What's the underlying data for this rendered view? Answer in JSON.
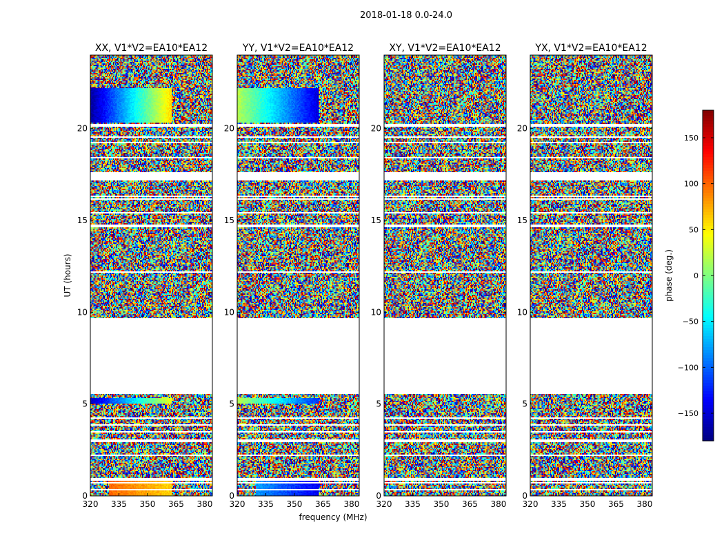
{
  "chart_data": {
    "type": "heatmap",
    "suptitle": "2018-01-18 0.0-24.0",
    "xlabel": "frequency (MHz)",
    "ylabel": "UT (hours)",
    "xlim": [
      320,
      384
    ],
    "ylim": [
      0,
      24
    ],
    "xticks": [
      320,
      335,
      350,
      365,
      380
    ],
    "yticks": [
      0,
      5,
      10,
      15,
      20
    ],
    "panels": [
      {
        "title": "XX, V1*V2=EA10*EA12",
        "pol": "XX"
      },
      {
        "title": "YY, V1*V2=EA10*EA12",
        "pol": "YY"
      },
      {
        "title": "XY, V1*V2=EA10*EA12",
        "pol": "XY"
      },
      {
        "title": "YX, V1*V2=EA10*EA12",
        "pol": "YX"
      }
    ],
    "flagged_ut_hours": [
      [
        5.55,
        9.7
      ],
      [
        17.2,
        17.6
      ],
      [
        0.8,
        0.95
      ],
      [
        2.9,
        3.05
      ],
      [
        14.6,
        14.75
      ],
      [
        20.1,
        20.25
      ]
    ],
    "coherent_segments": [
      {
        "pol": "XX",
        "ut": [
          20.3,
          22.2
        ],
        "freq": [
          320,
          363
        ],
        "phase_start": -170,
        "phase_end": 60
      },
      {
        "pol": "XX",
        "ut": [
          5.0,
          5.3
        ],
        "freq": [
          320,
          363
        ],
        "phase_start": -160,
        "phase_end": 40
      },
      {
        "pol": "XX",
        "ut": [
          0.0,
          0.8
        ],
        "freq": [
          330,
          363
        ],
        "phase_start": 100,
        "phase_end": 60
      },
      {
        "pol": "YY",
        "ut": [
          20.3,
          22.2
        ],
        "freq": [
          320,
          363
        ],
        "phase_start": 20,
        "phase_end": -150
      },
      {
        "pol": "YY",
        "ut": [
          5.0,
          5.3
        ],
        "freq": [
          320,
          363
        ],
        "phase_start": 20,
        "phase_end": -120
      },
      {
        "pol": "YY",
        "ut": [
          0.0,
          0.8
        ],
        "freq": [
          330,
          363
        ],
        "phase_start": -80,
        "phase_end": -140
      }
    ],
    "colorbar": {
      "label": "phase (deg.)",
      "range": [
        -180,
        180
      ],
      "ticks": [
        150,
        100,
        50,
        0,
        -50,
        -100,
        -150
      ],
      "tick_labels": [
        "150",
        "100",
        "50",
        "0",
        "−50",
        "−100",
        "−150"
      ]
    }
  }
}
